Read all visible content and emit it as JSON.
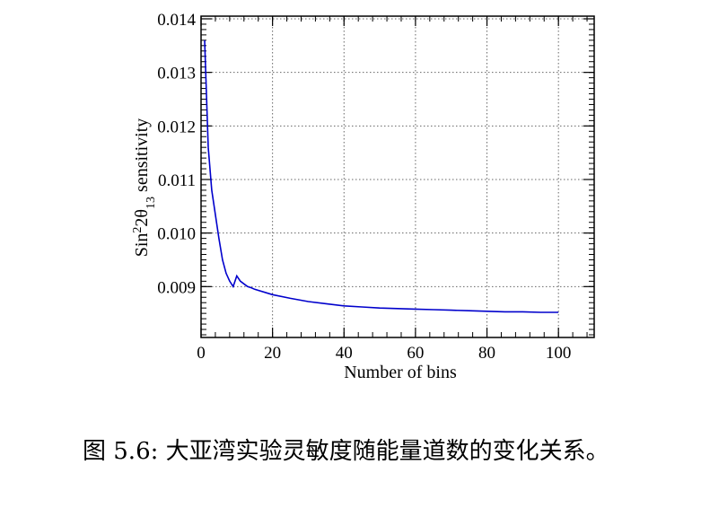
{
  "chart_data": {
    "type": "line",
    "xlabel": "Number of bins",
    "ylabel": {
      "base": "Sin",
      "sup": "2",
      "mid": "2θ",
      "sub": "13",
      "rest": " sensitivity"
    },
    "xlim": [
      0,
      110
    ],
    "ylim": [
      0.00805,
      0.01405
    ],
    "x_ticks": [
      0,
      20,
      40,
      60,
      80,
      100
    ],
    "y_ticks": [
      0.009,
      0.01,
      0.011,
      0.012,
      0.013,
      0.014
    ],
    "y_tick_labels": [
      "0.009",
      "0.010",
      "0.011",
      "0.012",
      "0.013",
      "0.014"
    ],
    "grid": true,
    "series": [
      {
        "color": "#0000cc",
        "x": [
          1,
          2,
          3,
          4,
          5,
          6,
          7,
          8,
          9,
          10,
          11,
          12,
          13,
          14,
          15,
          20,
          25,
          30,
          35,
          40,
          45,
          50,
          55,
          60,
          65,
          70,
          75,
          80,
          85,
          90,
          95,
          100
        ],
        "y": [
          0.0136,
          0.0116,
          0.0108,
          0.01035,
          0.0099,
          0.0095,
          0.00925,
          0.0091,
          0.009,
          0.0092,
          0.0091,
          0.00905,
          0.009,
          0.00898,
          0.00895,
          0.00885,
          0.00878,
          0.00872,
          0.00868,
          0.00864,
          0.00862,
          0.0086,
          0.00859,
          0.00858,
          0.00857,
          0.00856,
          0.00855,
          0.00854,
          0.00853,
          0.00853,
          0.00852,
          0.00852
        ]
      }
    ]
  },
  "caption": "图 5.6: 大亚湾实验灵敏度随能量道数的变化关系。"
}
